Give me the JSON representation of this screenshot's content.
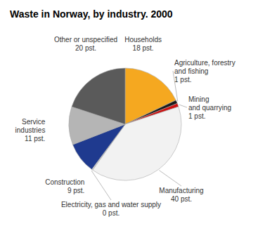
{
  "chart_data": {
    "type": "pie",
    "title": "Waste in Norway, by industry. 2000",
    "categories": [
      "Households",
      "Agriculture, forestry\nand fishing",
      "Mining\nand quarrying",
      "Manufacturing",
      "Electricity, gas and water supply",
      "Construction",
      "Service\nindustries",
      "Other or unspecified"
    ],
    "values": [
      18,
      1,
      1,
      40,
      0.3,
      9,
      11,
      20
    ],
    "value_labels": [
      "18 pst.",
      "1 pst.",
      "1 pst.",
      "40 pst.",
      "0 pst.",
      "9 pst.",
      "11 pst.",
      "20 pst."
    ],
    "colors": [
      "#F5A820",
      "#1a1a1a",
      "#cc1111",
      "#f2f2f2",
      "#e0e0e0",
      "#1f3a8f",
      "#b5b5b5",
      "#5a5a5a"
    ],
    "data_labels": true
  }
}
